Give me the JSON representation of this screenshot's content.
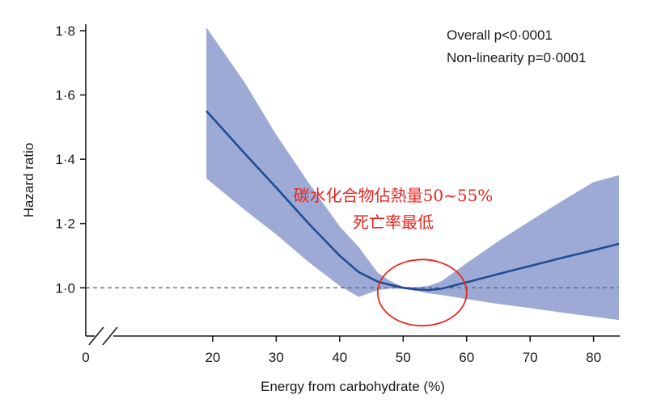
{
  "chart_data": {
    "type": "line",
    "title": "",
    "xlabel": "Energy from carbohydrate (%)",
    "ylabel": "Hazard ratio",
    "xlim": [
      0,
      84
    ],
    "ylim": [
      0.85,
      1.82
    ],
    "x_ticks": [
      {
        "value": 0,
        "label": "0"
      },
      {
        "value": 20,
        "label": "20"
      },
      {
        "value": 30,
        "label": "30"
      },
      {
        "value": 40,
        "label": "40"
      },
      {
        "value": 50,
        "label": "50"
      },
      {
        "value": 60,
        "label": "60"
      },
      {
        "value": 70,
        "label": "70"
      },
      {
        "value": 80,
        "label": "80"
      }
    ],
    "y_ticks": [
      {
        "value": 1.0,
        "label": "1·0"
      },
      {
        "value": 1.2,
        "label": "1·2"
      },
      {
        "value": 1.4,
        "label": "1·4"
      },
      {
        "value": 1.6,
        "label": "1·6"
      },
      {
        "value": 1.8,
        "label": "1·8"
      }
    ],
    "x_axis_break": true,
    "reference_line": {
      "y": 1.0,
      "style": "dashed"
    },
    "grid": false,
    "colors": {
      "line": "#1f4e96",
      "band": "#9daad6",
      "reference": "#5a6a80",
      "annotation": "#e3261f",
      "axis": "#1a1a1a"
    },
    "series": [
      {
        "x": [
          19,
          25,
          30,
          35,
          40,
          43,
          46,
          48,
          50,
          52,
          54,
          56,
          60,
          65,
          70,
          75,
          80,
          84
        ],
        "y": [
          1.55,
          1.419,
          1.312,
          1.202,
          1.1,
          1.049,
          1.019,
          1.009,
          1.0,
          0.995,
          0.993,
          0.997,
          1.017,
          1.043,
          1.068,
          1.093,
          1.117,
          1.137
        ],
        "ci_lower": [
          1.34,
          1.243,
          1.166,
          1.082,
          1.006,
          0.972,
          0.993,
          0.998,
          0.997,
          0.991,
          0.983,
          0.978,
          0.965,
          0.95,
          0.937,
          0.923,
          0.91,
          0.9
        ],
        "ci_upper": [
          1.81,
          1.64,
          1.476,
          1.33,
          1.191,
          1.127,
          1.047,
          1.021,
          1.003,
          1.002,
          1.006,
          1.02,
          1.077,
          1.145,
          1.208,
          1.27,
          1.329,
          1.35
        ]
      }
    ],
    "stats": [
      "Overall p<0·0001",
      "Non-linearity p=0·0001"
    ],
    "annotation": {
      "lines": [
        "碳水化合物佔熱量50~55%",
        "死亡率最低"
      ],
      "highlight_center": {
        "x": 53,
        "y": 0.995
      }
    }
  }
}
